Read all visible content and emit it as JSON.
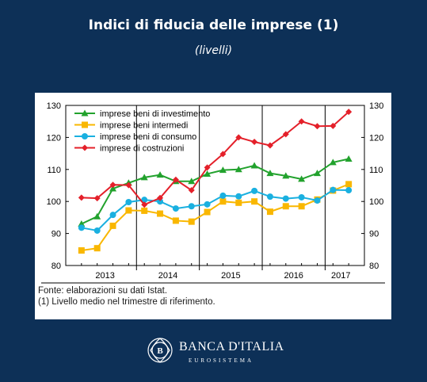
{
  "header": {
    "title": "Indici di fiducia delle imprese (1)",
    "subtitle": "(livelli)"
  },
  "chart_data": {
    "type": "line",
    "x": [
      "2013-Q1",
      "2013-Q2",
      "2013-Q3",
      "2013-Q4",
      "2014-Q1",
      "2014-Q2",
      "2014-Q3",
      "2014-Q4",
      "2015-Q1",
      "2015-Q2",
      "2015-Q3",
      "2015-Q4",
      "2016-Q1",
      "2016-Q2",
      "2016-Q3",
      "2016-Q4",
      "2017-Q1",
      "2017-Q2"
    ],
    "year_labels": [
      "2013",
      "2014",
      "2015",
      "2016",
      "2017"
    ],
    "ylim": [
      80,
      130
    ],
    "yticks": [
      "80",
      "90",
      "100",
      "110",
      "120",
      "130"
    ],
    "grid": false,
    "legend_position": "top-left",
    "series": [
      {
        "name": "imprese beni di investimento",
        "color": "#22a22d",
        "marker": "triangle",
        "values": [
          93,
          95.3,
          104,
          105.8,
          107.5,
          108.3,
          106.3,
          106.3,
          108.6,
          109.8,
          110,
          111.2,
          108.8,
          108,
          107,
          108.8,
          112.2,
          113.3
        ]
      },
      {
        "name": "imprese beni intermedi",
        "color": "#f9b700",
        "marker": "square",
        "values": [
          84.7,
          85.4,
          92.4,
          97.2,
          97.1,
          96.2,
          94,
          93.7,
          96.7,
          100,
          99.6,
          100,
          96.8,
          98.5,
          98.5,
          100.6,
          103.4,
          105.4
        ]
      },
      {
        "name": "imprese beni di consumo",
        "color": "#1ab0e0",
        "marker": "circle",
        "values": [
          91.8,
          90.9,
          95.8,
          99.8,
          100.5,
          100,
          97.8,
          98.5,
          99.1,
          101.8,
          101.6,
          103.3,
          101.5,
          100.9,
          101.3,
          100.3,
          103.6,
          103.5
        ]
      },
      {
        "name": "imprese di costruzioni",
        "color": "#e4202a",
        "marker": "diamond",
        "values": [
          101.2,
          101,
          105.2,
          105.1,
          99,
          101.1,
          106.8,
          103.5,
          110.6,
          114.8,
          120,
          118.6,
          117.5,
          121,
          125,
          123.5,
          123.6,
          128
        ]
      }
    ]
  },
  "notes": {
    "source": "Fonte: elaborazioni su dati Istat.",
    "footnote": "(1) Livello medio nel trimestre di riferimento."
  },
  "logo": {
    "name": "BANCA D'ITALIA",
    "subtitle": "EUROSISTEMA"
  }
}
